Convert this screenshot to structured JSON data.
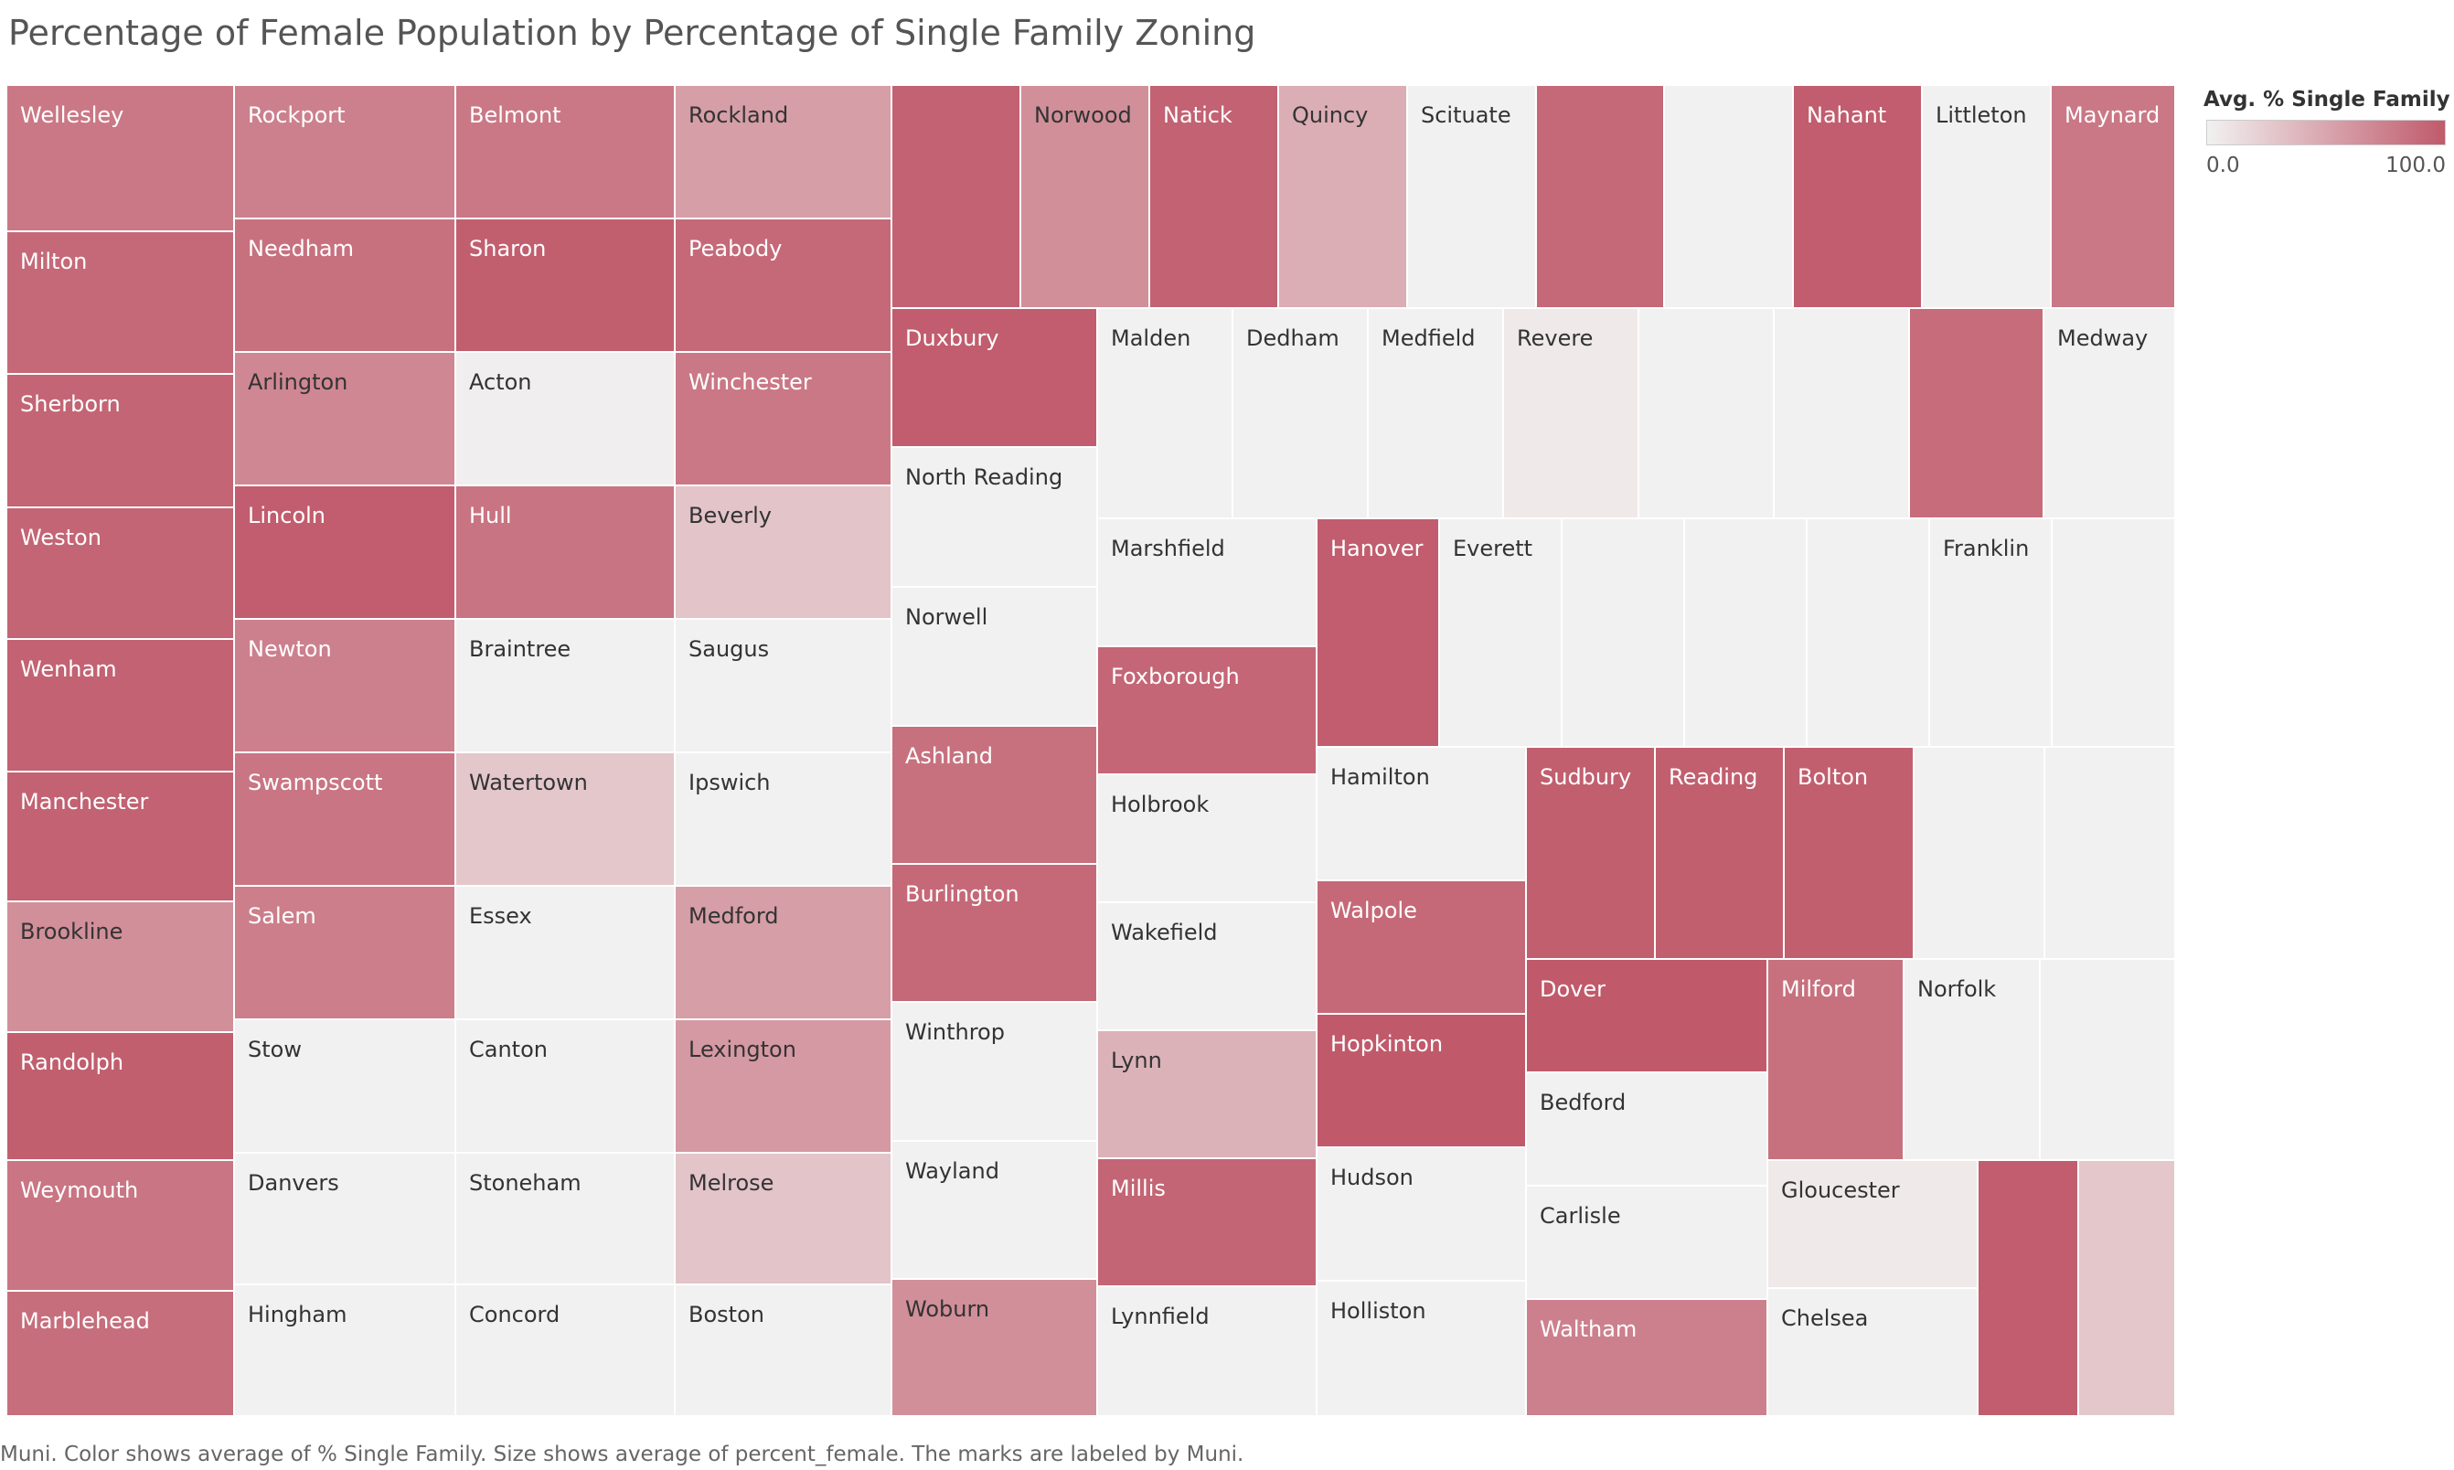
{
  "title": "Percentage of Female Population by Percentage of Single Family Zoning",
  "footnote": "Muni.  Color shows average of % Single Family.  Size shows average of percent_female.  The marks are labeled by Muni.",
  "legend": {
    "title": "Avg. % Single Family",
    "min_label": "0.0",
    "max_label": "100.0"
  },
  "colors": {
    "low": "#f1f1f1",
    "high": "#c05a6b",
    "text_dark": "#333333",
    "text_light": "#ffffff"
  },
  "chart_data": {
    "type": "treemap",
    "size_measure": "percent_female",
    "color_measure": "% Single Family",
    "color_range": [
      0,
      100
    ],
    "cells": [
      {
        "label": "Wellesley",
        "value": 80
      },
      {
        "label": "Milton",
        "value": 90
      },
      {
        "label": "Sherborn",
        "value": 93
      },
      {
        "label": "Weston",
        "value": 93
      },
      {
        "label": "Wenham",
        "value": 95
      },
      {
        "label": "Manchester",
        "value": 95
      },
      {
        "label": "Brookline",
        "value": 65
      },
      {
        "label": "Randolph",
        "value": 97
      },
      {
        "label": "Weymouth",
        "value": 82
      },
      {
        "label": "Marblehead",
        "value": 87
      },
      {
        "label": "Rockport",
        "value": 75
      },
      {
        "label": "Needham",
        "value": 85
      },
      {
        "label": "Arlington",
        "value": 70
      },
      {
        "label": "Lincoln",
        "value": 98
      },
      {
        "label": "Newton",
        "value": 75
      },
      {
        "label": "Swampscott",
        "value": 82
      },
      {
        "label": "Salem",
        "value": 76
      },
      {
        "label": "Stow",
        "value": 0
      },
      {
        "label": "Danvers",
        "value": 0
      },
      {
        "label": "Hingham",
        "value": 0
      },
      {
        "label": "Belmont",
        "value": 80
      },
      {
        "label": "Sharon",
        "value": 97
      },
      {
        "label": "Acton",
        "value": 2
      },
      {
        "label": "Hull",
        "value": 83
      },
      {
        "label": "Braintree",
        "value": 0
      },
      {
        "label": "Watertown",
        "value": 28
      },
      {
        "label": "Essex",
        "value": 0
      },
      {
        "label": "Canton",
        "value": 0
      },
      {
        "label": "Stoneham",
        "value": 0
      },
      {
        "label": "Concord",
        "value": 0
      },
      {
        "label": "Rockland",
        "value": 55
      },
      {
        "label": "Peabody",
        "value": 90
      },
      {
        "label": "Winchester",
        "value": 80
      },
      {
        "label": "Beverly",
        "value": 30
      },
      {
        "label": "Saugus",
        "value": 0
      },
      {
        "label": "Ipswich",
        "value": 0
      },
      {
        "label": "Medford",
        "value": 55
      },
      {
        "label": "Lexington",
        "value": 58
      },
      {
        "label": "Melrose",
        "value": 30
      },
      {
        "label": "Boston",
        "value": 0
      },
      {
        "label": "",
        "value": 95
      },
      {
        "label": "Norwood",
        "value": 65
      },
      {
        "label": "Natick",
        "value": 95
      },
      {
        "label": "Quincy",
        "value": 45
      },
      {
        "label": "Scituate",
        "value": 0
      },
      {
        "label": "",
        "value": 90
      },
      {
        "label": "",
        "value": 0
      },
      {
        "label": "Nahant",
        "value": 98
      },
      {
        "label": "Littleton",
        "value": 0
      },
      {
        "label": "Maynard",
        "value": 80
      },
      {
        "label": "Duxbury",
        "value": 98
      },
      {
        "label": "North Reading",
        "value": 0
      },
      {
        "label": "Norwell",
        "value": 0
      },
      {
        "label": "Ashland",
        "value": 85
      },
      {
        "label": "Burlington",
        "value": 90
      },
      {
        "label": "Winthrop",
        "value": 0
      },
      {
        "label": "Wayland",
        "value": 0
      },
      {
        "label": "Woburn",
        "value": 65
      },
      {
        "label": "Malden",
        "value": 0
      },
      {
        "label": "Dedham",
        "value": 0
      },
      {
        "label": "Medfield",
        "value": 0
      },
      {
        "label": "Revere",
        "value": 5
      },
      {
        "label": "",
        "value": 0
      },
      {
        "label": "",
        "value": 0
      },
      {
        "label": "",
        "value": 88
      },
      {
        "label": "Medway",
        "value": 0
      },
      {
        "label": "Marshfield",
        "value": 0
      },
      {
        "label": "Foxborough",
        "value": 92
      },
      {
        "label": "Holbrook",
        "value": 0
      },
      {
        "label": "Wakefield",
        "value": 0
      },
      {
        "label": "Lynn",
        "value": 42
      },
      {
        "label": "Millis",
        "value": 93
      },
      {
        "label": "Lynnfield",
        "value": 0
      },
      {
        "label": "Hanover",
        "value": 98
      },
      {
        "label": "Everett",
        "value": 0
      },
      {
        "label": "",
        "value": 0
      },
      {
        "label": "",
        "value": 0
      },
      {
        "label": "",
        "value": 0
      },
      {
        "label": "Franklin",
        "value": 0
      },
      {
        "label": "",
        "value": 0
      },
      {
        "label": "Hamilton",
        "value": 0
      },
      {
        "label": "Walpole",
        "value": 90
      },
      {
        "label": "Hopkinton",
        "value": 100
      },
      {
        "label": "Hudson",
        "value": 0
      },
      {
        "label": "Holliston",
        "value": 0
      },
      {
        "label": "Sudbury",
        "value": 97
      },
      {
        "label": "Reading",
        "value": 97
      },
      {
        "label": "Bolton",
        "value": 97
      },
      {
        "label": "",
        "value": 0
      },
      {
        "label": "",
        "value": 0
      },
      {
        "label": "Dover",
        "value": 100
      },
      {
        "label": "Bedford",
        "value": 0
      },
      {
        "label": "Carlisle",
        "value": 0
      },
      {
        "label": "Waltham",
        "value": 75
      },
      {
        "label": "Milford",
        "value": 85
      },
      {
        "label": "Norfolk",
        "value": 0
      },
      {
        "label": "",
        "value": 0
      },
      {
        "label": "Gloucester",
        "value": 5
      },
      {
        "label": "Chelsea",
        "value": 0
      },
      {
        "label": "",
        "value": 98
      },
      {
        "label": "",
        "value": 28
      }
    ]
  }
}
